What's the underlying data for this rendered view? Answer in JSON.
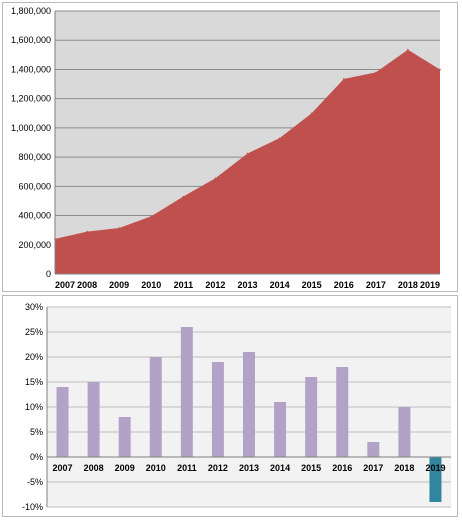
{
  "chart_data": [
    {
      "type": "area",
      "title": "",
      "xlabel": "",
      "ylabel": "",
      "categories": [
        "2007",
        "2008",
        "2009",
        "2010",
        "2011",
        "2012",
        "2013",
        "2014",
        "2015",
        "2016",
        "2017",
        "2018",
        "2019"
      ],
      "values": [
        240000,
        290000,
        315000,
        395000,
        530000,
        655000,
        825000,
        930000,
        1100000,
        1335000,
        1380000,
        1535000,
        1400000
      ],
      "ylim": [
        0,
        1800000
      ],
      "yticks": [
        "0",
        "200,000",
        "400,000",
        "600,000",
        "800,000",
        "1,000,000",
        "1,200,000",
        "1,400,000",
        "1,600,000",
        "1,800,000"
      ],
      "grid": true,
      "legend": "none",
      "colors": {
        "area": "#c0504d",
        "plot_background": "#d9d9d9",
        "gridline": "#8c8c8c"
      }
    },
    {
      "type": "bar",
      "title": "",
      "xlabel": "",
      "ylabel": "",
      "categories": [
        "2007",
        "2008",
        "2009",
        "2010",
        "2011",
        "2012",
        "2013",
        "2014",
        "2015",
        "2016",
        "2017",
        "2018",
        "2019"
      ],
      "values": [
        14,
        15,
        8,
        20,
        26,
        19,
        21,
        11,
        16,
        18,
        3,
        10,
        -9
      ],
      "ylim": [
        -10,
        30
      ],
      "yticks": [
        "30%",
        "25%",
        "20%",
        "15%",
        "10%",
        "5%",
        "0%",
        "-5%",
        "-10%"
      ],
      "grid": true,
      "legend": "none",
      "colors": {
        "bar": "#b3a2c7",
        "highlight_bar": "#31859c",
        "plot_background": "#f2f2f2",
        "gridline": "#bfbfbf"
      },
      "highlight_index": 12
    }
  ]
}
